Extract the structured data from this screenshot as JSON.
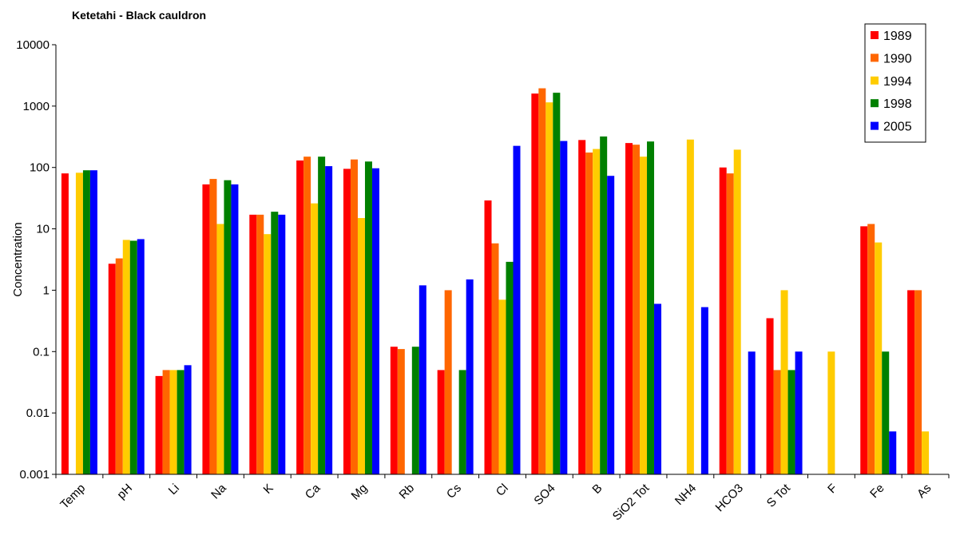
{
  "chart_data": {
    "type": "bar",
    "title": "Ketetahi - Black cauldron",
    "xlabel": "",
    "ylabel": "Concentration",
    "yscale": "log",
    "ylim": [
      0.001,
      10000
    ],
    "yticks": [
      "0.001",
      "0.01",
      "0.1",
      "1",
      "10",
      "100",
      "1000",
      "10000"
    ],
    "grid": false,
    "legend_position": "top-right",
    "categories": [
      "Temp",
      "pH",
      "Li",
      "Na",
      "K",
      "Ca",
      "Mg",
      "Rb",
      "Cs",
      "Cl",
      "SO4",
      "B",
      "SiO2 Tot",
      "NH4",
      "HCO3",
      "S Tot",
      "F",
      "Fe",
      "As"
    ],
    "series": [
      {
        "name": "1989",
        "color": "#ff0000",
        "values": [
          80,
          2.7,
          0.04,
          53,
          17,
          130,
          95,
          0.12,
          0.05,
          29,
          1600,
          280,
          250,
          null,
          100,
          0.35,
          null,
          11,
          1
        ]
      },
      {
        "name": "1990",
        "color": "#ff6600",
        "values": [
          null,
          3.3,
          0.05,
          65,
          17,
          150,
          135,
          0.11,
          1,
          5.8,
          1950,
          175,
          235,
          null,
          80,
          0.05,
          null,
          12,
          1
        ]
      },
      {
        "name": "1994",
        "color": "#ffcc00",
        "values": [
          82,
          6.6,
          0.05,
          12,
          8.2,
          26,
          15,
          null,
          null,
          0.7,
          1150,
          200,
          150,
          285,
          195,
          1,
          0.1,
          6,
          0.005
        ]
      },
      {
        "name": "1998",
        "color": "#008000",
        "values": [
          90,
          6.4,
          0.05,
          62,
          19,
          150,
          125,
          0.12,
          0.05,
          2.9,
          1650,
          320,
          265,
          null,
          null,
          0.05,
          null,
          0.1,
          null
        ]
      },
      {
        "name": "2005",
        "color": "#0000ff",
        "values": [
          90,
          6.8,
          0.06,
          53,
          17,
          105,
          97,
          1.2,
          1.5,
          225,
          270,
          73,
          0.6,
          0.53,
          0.1,
          0.1,
          null,
          0.005,
          null
        ]
      }
    ]
  }
}
